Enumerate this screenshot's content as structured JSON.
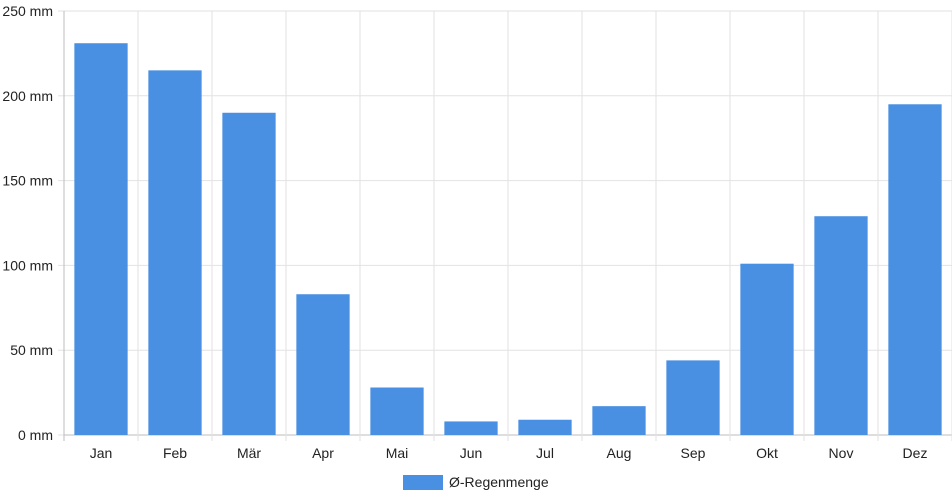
{
  "chart_data": {
    "type": "bar",
    "categories": [
      "Jan",
      "Feb",
      "Mär",
      "Apr",
      "Mai",
      "Jun",
      "Jul",
      "Aug",
      "Sep",
      "Okt",
      "Nov",
      "Dez"
    ],
    "series": [
      {
        "name": "Ø-Regenmenge",
        "values": [
          231,
          215,
          190,
          83,
          28,
          8,
          9,
          17,
          44,
          101,
          129,
          195
        ]
      }
    ],
    "y_ticks": [
      "0 mm",
      "50 mm",
      "100 mm",
      "150 mm",
      "200 mm",
      "250 mm"
    ],
    "y_tick_values": [
      0,
      50,
      100,
      150,
      200,
      250
    ],
    "ylim": [
      0,
      250
    ],
    "title": "",
    "xlabel": "",
    "ylabel": "",
    "unit": "mm",
    "grid": true,
    "legend_position": "bottom",
    "colors": {
      "bar": "#4a90e2",
      "grid": "#e2e2e2",
      "axis": "#bdbdbd",
      "text": "#222222"
    }
  }
}
